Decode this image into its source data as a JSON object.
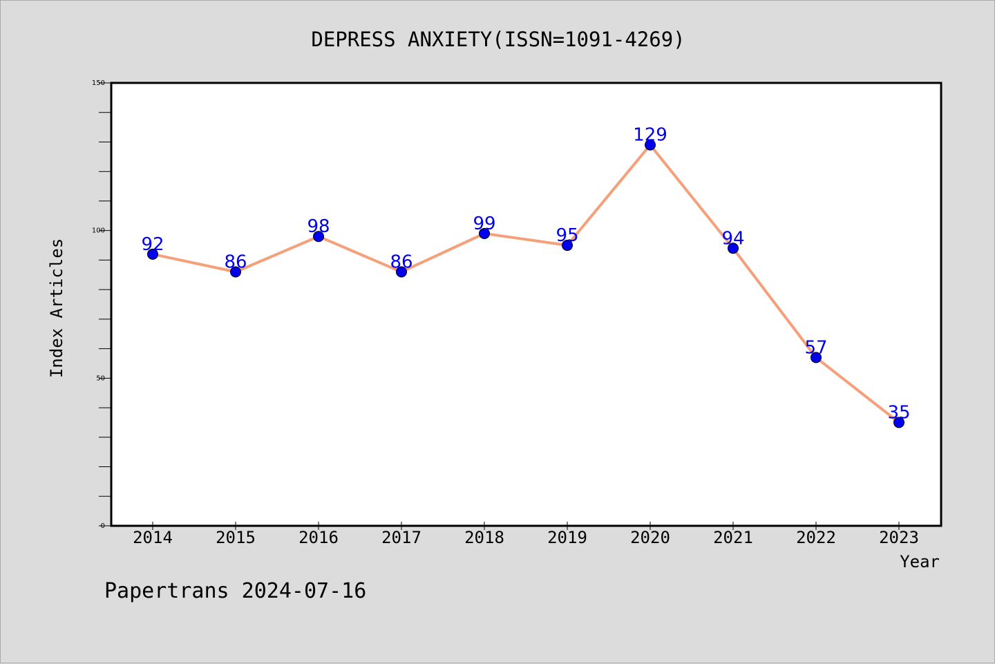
{
  "chart_data": {
    "type": "line",
    "title": "DEPRESS ANXIETY(ISSN=1091-4269)",
    "xlabel": "Year",
    "ylabel": "Index Articles",
    "categories": [
      "2014",
      "2015",
      "2016",
      "2017",
      "2018",
      "2019",
      "2020",
      "2021",
      "2022",
      "2023"
    ],
    "values": [
      92,
      86,
      98,
      86,
      99,
      95,
      129,
      94,
      57,
      35
    ],
    "ylim": [
      0,
      150
    ],
    "y_ticks": [
      "0",
      "50",
      "100",
      "150"
    ],
    "y_minor_step": 10,
    "grid": false,
    "line_color": "#f5a07a",
    "marker_color": "#0000ee",
    "label_color": "#0000ee"
  },
  "footer": {
    "credit": "Papertrans 2024-07-16"
  }
}
